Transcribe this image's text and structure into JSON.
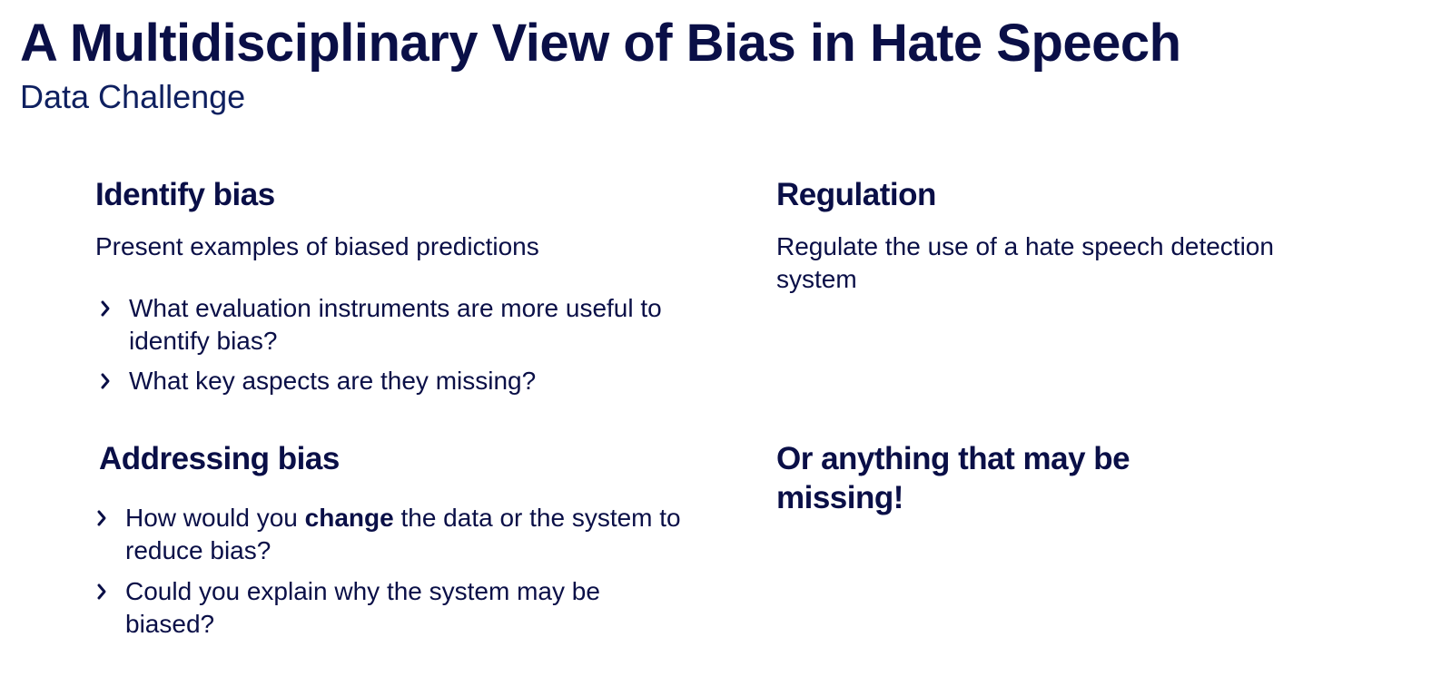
{
  "slide": {
    "title": "A Multidisciplinary View of Bias in Hate Speech",
    "subtitle": "Data Challenge"
  },
  "identify": {
    "heading": "Identify bias",
    "intro": "Present examples of biased predictions",
    "bullets": [
      "What evaluation instruments are more useful to identify bias?",
      "What key aspects are they missing?"
    ]
  },
  "regulation": {
    "heading": "Regulation",
    "text": "Regulate the use of a hate speech detection system"
  },
  "addressing": {
    "heading": "Addressing bias",
    "bullet1": {
      "before": "How would you ",
      "bold": "change",
      "after": " the data or the system to reduce bias?"
    },
    "bullet2": "Could you explain why the system may be biased?"
  },
  "other": {
    "heading": "Or anything that may be missing!"
  },
  "icons": {
    "bullet": "chevron-right-icon"
  },
  "colors": {
    "text": "#0a0f47",
    "subtitle": "#0f2060",
    "background": "#ffffff"
  }
}
